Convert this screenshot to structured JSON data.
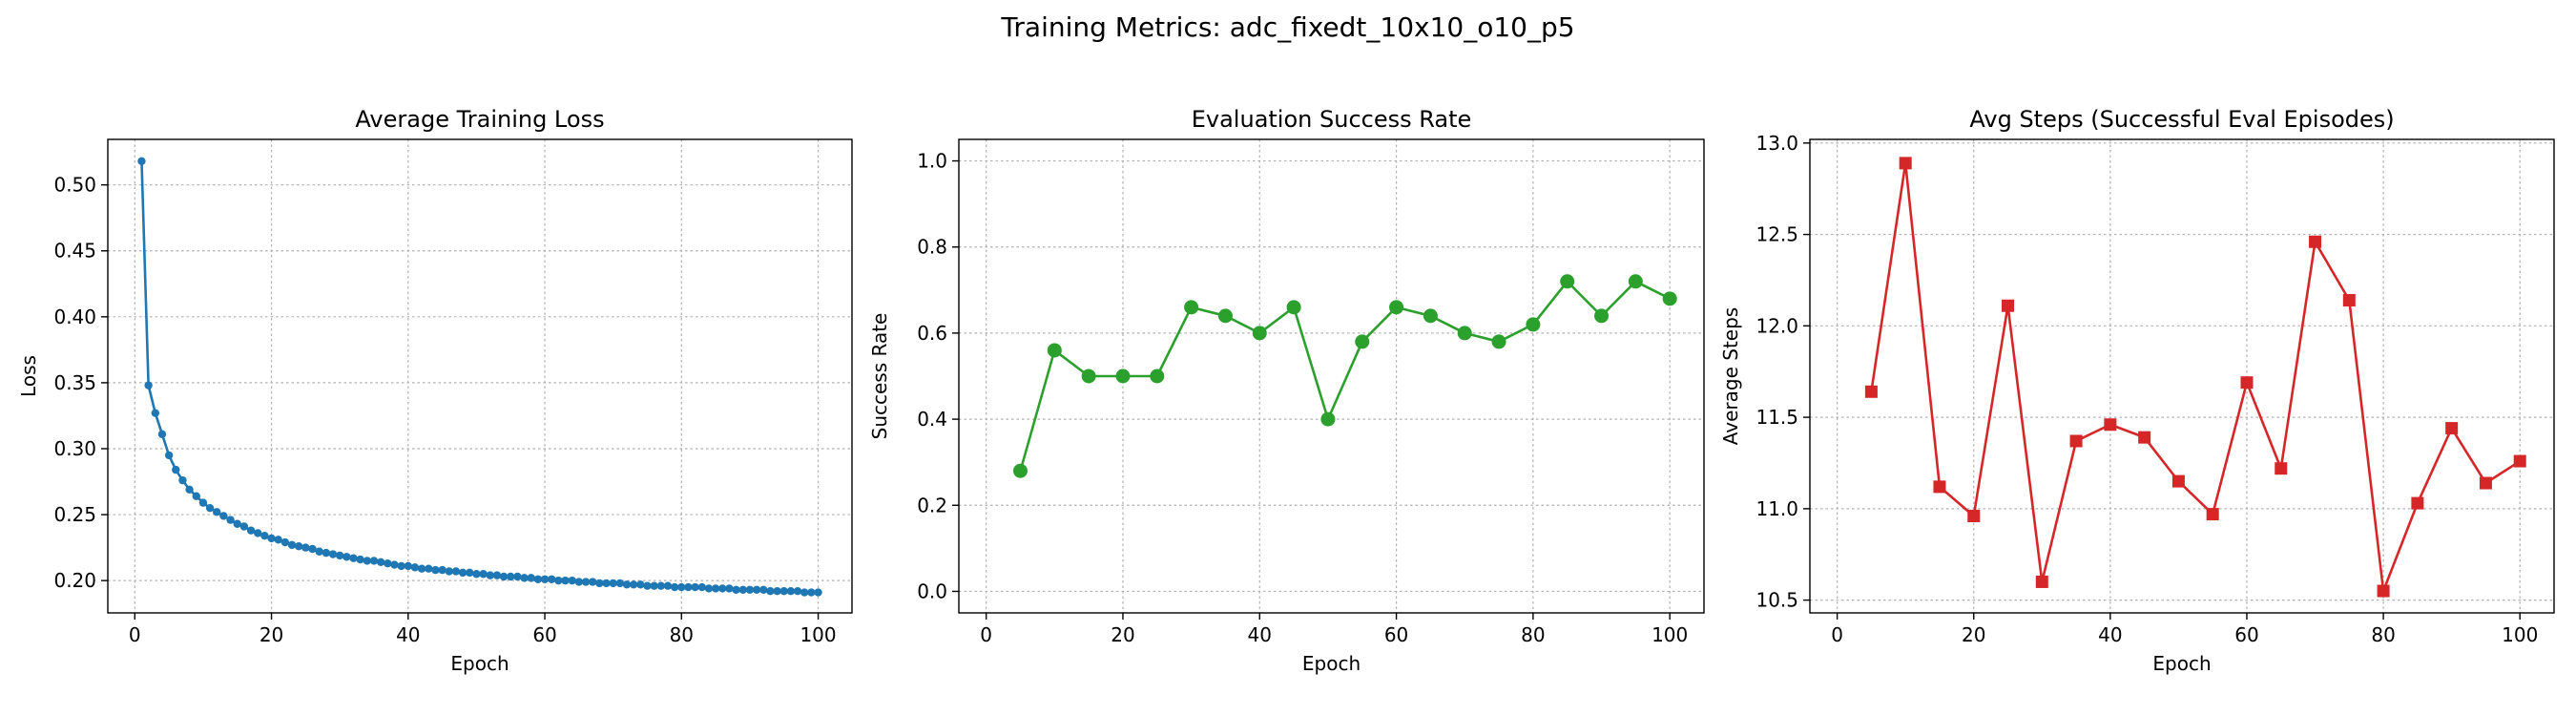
{
  "figure": {
    "suptitle": "Training Metrics: adc_fixedt_10x10_o10_p5"
  },
  "chart_data": [
    {
      "type": "line",
      "title": "Average Training Loss",
      "xlabel": "Epoch",
      "ylabel": "Loss",
      "xlim": [
        -3.95,
        104.95
      ],
      "ylim": [
        0.1755,
        0.5345
      ],
      "xticks": [
        0,
        20,
        40,
        60,
        80,
        100
      ],
      "yticks": [
        0.2,
        0.25,
        0.3,
        0.35,
        0.4,
        0.45,
        0.5
      ],
      "ytick_labels": [
        "0.20",
        "0.25",
        "0.30",
        "0.35",
        "0.40",
        "0.45",
        "0.50"
      ],
      "grid": true,
      "color": "#1f77b4",
      "marker": "circle-small",
      "x": [
        1,
        2,
        3,
        4,
        5,
        6,
        7,
        8,
        9,
        10,
        11,
        12,
        13,
        14,
        15,
        16,
        17,
        18,
        19,
        20,
        21,
        22,
        23,
        24,
        25,
        26,
        27,
        28,
        29,
        30,
        31,
        32,
        33,
        34,
        35,
        36,
        37,
        38,
        39,
        40,
        41,
        42,
        43,
        44,
        45,
        46,
        47,
        48,
        49,
        50,
        51,
        52,
        53,
        54,
        55,
        56,
        57,
        58,
        59,
        60,
        61,
        62,
        63,
        64,
        65,
        66,
        67,
        68,
        69,
        70,
        71,
        72,
        73,
        74,
        75,
        76,
        77,
        78,
        79,
        80,
        81,
        82,
        83,
        84,
        85,
        86,
        87,
        88,
        89,
        90,
        91,
        92,
        93,
        94,
        95,
        96,
        97,
        98,
        99,
        100
      ],
      "y": [
        0.518,
        0.348,
        0.327,
        0.311,
        0.295,
        0.284,
        0.276,
        0.269,
        0.264,
        0.259,
        0.255,
        0.252,
        0.249,
        0.246,
        0.243,
        0.241,
        0.238,
        0.236,
        0.234,
        0.232,
        0.231,
        0.229,
        0.227,
        0.226,
        0.225,
        0.224,
        0.222,
        0.221,
        0.22,
        0.219,
        0.218,
        0.217,
        0.216,
        0.215,
        0.215,
        0.214,
        0.213,
        0.212,
        0.211,
        0.211,
        0.21,
        0.209,
        0.209,
        0.208,
        0.208,
        0.207,
        0.207,
        0.206,
        0.206,
        0.205,
        0.205,
        0.204,
        0.204,
        0.203,
        0.203,
        0.203,
        0.202,
        0.202,
        0.201,
        0.201,
        0.201,
        0.2,
        0.2,
        0.2,
        0.199,
        0.199,
        0.199,
        0.198,
        0.198,
        0.198,
        0.198,
        0.197,
        0.197,
        0.197,
        0.196,
        0.196,
        0.196,
        0.196,
        0.195,
        0.195,
        0.195,
        0.195,
        0.195,
        0.194,
        0.194,
        0.194,
        0.194,
        0.193,
        0.193,
        0.193,
        0.193,
        0.193,
        0.192,
        0.192,
        0.192,
        0.192,
        0.192,
        0.191,
        0.191,
        0.191
      ]
    },
    {
      "type": "line",
      "title": "Evaluation Success Rate",
      "xlabel": "Epoch",
      "ylabel": "Success Rate",
      "xlim": [
        -4.0,
        105.0
      ],
      "ylim": [
        -0.05,
        1.05
      ],
      "xticks": [
        0,
        20,
        40,
        60,
        80,
        100
      ],
      "yticks": [
        0.0,
        0.2,
        0.4,
        0.6,
        0.8,
        1.0
      ],
      "ytick_labels": [
        "0.0",
        "0.2",
        "0.4",
        "0.6",
        "0.8",
        "1.0"
      ],
      "grid": true,
      "color": "#2ca02c",
      "marker": "circle",
      "x": [
        5,
        10,
        15,
        20,
        25,
        30,
        35,
        40,
        45,
        50,
        55,
        60,
        65,
        70,
        75,
        80,
        85,
        90,
        95,
        100
      ],
      "y": [
        0.28,
        0.56,
        0.5,
        0.5,
        0.5,
        0.66,
        0.64,
        0.6,
        0.66,
        0.4,
        0.58,
        0.66,
        0.64,
        0.6,
        0.58,
        0.62,
        0.72,
        0.64,
        0.72,
        0.68
      ]
    },
    {
      "type": "line",
      "title": "Avg Steps (Successful Eval Episodes)",
      "xlabel": "Epoch",
      "ylabel": "Average Steps",
      "xlim": [
        -4.0,
        105.0
      ],
      "ylim": [
        10.43,
        13.02
      ],
      "xticks": [
        0,
        20,
        40,
        60,
        80,
        100
      ],
      "yticks": [
        10.5,
        11.0,
        11.5,
        12.0,
        12.5,
        13.0
      ],
      "ytick_labels": [
        "10.5",
        "11.0",
        "11.5",
        "12.0",
        "12.5",
        "13.0"
      ],
      "grid": true,
      "color": "#d62728",
      "marker": "square",
      "x": [
        5,
        10,
        15,
        20,
        25,
        30,
        35,
        40,
        45,
        50,
        55,
        60,
        65,
        70,
        75,
        80,
        85,
        90,
        95,
        100
      ],
      "y": [
        11.64,
        12.89,
        11.12,
        10.96,
        12.11,
        10.6,
        11.37,
        11.46,
        11.39,
        11.15,
        10.97,
        11.69,
        11.22,
        12.46,
        12.14,
        10.55,
        11.03,
        11.44,
        11.14,
        11.26
      ]
    }
  ]
}
